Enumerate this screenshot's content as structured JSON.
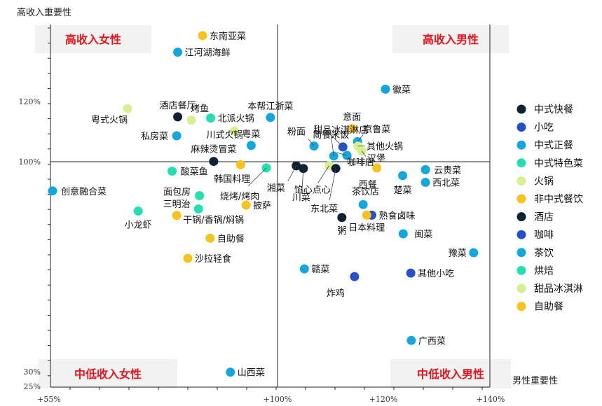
{
  "chart_data": {
    "type": "scatter",
    "title": "",
    "xlabel": "男性重要性",
    "ylabel": "高收入重要性",
    "xlim": [
      55,
      145
    ],
    "ylim": [
      25,
      145
    ],
    "grid": false,
    "legend_position": "right",
    "x_ticks": [
      {
        "value": 55,
        "label": "+55%"
      },
      {
        "value": 100,
        "label": "+100%"
      },
      {
        "value": 120,
        "label": "+120%"
      },
      {
        "value": 140,
        "label": "+140%"
      }
    ],
    "y_ticks": [
      {
        "value": 120,
        "label": "120%"
      },
      {
        "value": 100,
        "label": "100%"
      },
      {
        "value": 30,
        "label": "30%"
      },
      {
        "value": 25,
        "label": "25%"
      }
    ],
    "quadrants": {
      "top_left": "高收入女性",
      "top_right": "高收入男性",
      "bottom_left": "中低收入女性",
      "bottom_right": "中低收入男性"
    },
    "categories": [
      {
        "name": "中式快餐",
        "color": "#0d2233"
      },
      {
        "name": "小吃",
        "color": "#2450c9"
      },
      {
        "name": "中式正餐",
        "color": "#12a7df"
      },
      {
        "name": "中式特色菜",
        "color": "#23e0b3"
      },
      {
        "name": "火锅",
        "color": "#d6ef8f"
      },
      {
        "name": "非中式餐饮",
        "color": "#f6c41c"
      },
      {
        "name": "酒店",
        "color": "#0d2233"
      },
      {
        "name": "咖啡",
        "color": "#2450c9"
      },
      {
        "name": "茶饮",
        "color": "#12a7df"
      },
      {
        "name": "烘焙",
        "color": "#23e0b3"
      },
      {
        "name": "甜品冰淇淋",
        "color": "#d6ef8f"
      },
      {
        "name": "自助餐",
        "color": "#f6c41c"
      }
    ],
    "points": [
      {
        "label": "东南亚菜",
        "x": 85.2,
        "y": 141.9,
        "category": "非中式餐饮"
      },
      {
        "label": "江河湖海鲜",
        "x": 80.3,
        "y": 136.4,
        "category": "中式正餐"
      },
      {
        "label": "徽菜",
        "x": 121.3,
        "y": 124.1,
        "category": "中式正餐"
      },
      {
        "label": "粤式火锅",
        "x": 70.4,
        "y": 117.6,
        "category": "火锅"
      },
      {
        "label": "酒店餐厅",
        "x": 80.3,
        "y": 114.9,
        "category": "酒店"
      },
      {
        "label": "烤鱼",
        "x": 83.0,
        "y": 113.8,
        "category": "火锅"
      },
      {
        "label": "北派火锅",
        "x": 86.8,
        "y": 114.5,
        "category": "中式特色菜"
      },
      {
        "label": "本帮江浙菜",
        "x": 98.6,
        "y": 114.7,
        "category": "中式正餐"
      },
      {
        "label": "意面",
        "x": 114.7,
        "y": 111.0,
        "category": "非中式餐饮"
      },
      {
        "label": "川式火锅",
        "x": 91.5,
        "y": 110.2,
        "category": "火锅"
      },
      {
        "label": "私房菜",
        "x": 80.1,
        "y": 108.6,
        "category": "中式正餐"
      },
      {
        "label": "粤菜",
        "x": 94.8,
        "y": 105.4,
        "category": "中式正餐"
      },
      {
        "label": "京鲁菜",
        "x": 115.8,
        "y": 106.7,
        "category": "中式正餐"
      },
      {
        "label": "其他火锅",
        "x": 115.9,
        "y": 105.2,
        "category": "火锅"
      },
      {
        "label": "汉堡",
        "x": 116.6,
        "y": 103.6,
        "category": "甜品冰淇淋"
      },
      {
        "label": "甜品冰淇淋店",
        "x": 112.9,
        "y": 104.9,
        "category": "小吃"
      },
      {
        "label": "麻辣烫冒菜",
        "x": 87.4,
        "y": 100.1,
        "category": "中式快餐"
      },
      {
        "label": "简餐米饭",
        "x": 111.1,
        "y": 101.9,
        "category": "中式正餐"
      },
      {
        "label": "粉面",
        "x": 107.2,
        "y": 105.2,
        "category": "中式正餐"
      },
      {
        "label": "咖啡店",
        "x": 113.7,
        "y": 102.1,
        "category": "茶饮"
      },
      {
        "label": "湘菜",
        "x": 103.7,
        "y": 98.6,
        "category": "中式快餐"
      },
      {
        "label": "川菜",
        "x": 105.1,
        "y": 97.7,
        "category": "中式快餐"
      },
      {
        "label": "馅心点心",
        "x": 110.2,
        "y": 98.7,
        "category": "甜品冰淇淋"
      },
      {
        "label": "东北菜",
        "x": 111.5,
        "y": 97.7,
        "category": "中式快餐"
      },
      {
        "label": "西餐",
        "x": 119.6,
        "y": 97.9,
        "category": "非中式餐饮"
      },
      {
        "label": "韩国料理",
        "x": 92.7,
        "y": 99.0,
        "category": "非中式餐饮"
      },
      {
        "label": "烧烤/烤肉",
        "x": 97.8,
        "y": 97.9,
        "category": "中式特色菜"
      },
      {
        "label": "酸菜鱼",
        "x": 79.2,
        "y": 96.8,
        "category": "中式特色菜"
      },
      {
        "label": "云贵菜",
        "x": 129.2,
        "y": 97.3,
        "category": "中式正餐"
      },
      {
        "label": "楚菜",
        "x": 124.7,
        "y": 95.3,
        "category": "中式正餐"
      },
      {
        "label": "西北菜",
        "x": 129.2,
        "y": 93.0,
        "category": "中式正餐"
      },
      {
        "label": "创意融合菜",
        "x": 55.6,
        "y": 90.1,
        "category": "中式正餐"
      },
      {
        "label": "面包房",
        "x": 84.6,
        "y": 88.5,
        "category": "中式特色菜"
      },
      {
        "label": "茶饮店",
        "x": 116.9,
        "y": 85.5,
        "category": "茶饮"
      },
      {
        "label": "披萨",
        "x": 93.8,
        "y": 85.3,
        "category": "非中式餐饮"
      },
      {
        "label": "三明治",
        "x": 80.1,
        "y": 81.8,
        "category": "非中式餐饮"
      },
      {
        "label": "小龙虾",
        "x": 72.5,
        "y": 83.3,
        "category": "中式特色菜"
      },
      {
        "label": "熟食卤味",
        "x": 118.6,
        "y": 81.9,
        "category": "小吃"
      },
      {
        "label": "日本料理",
        "x": 117.6,
        "y": 81.9,
        "category": "非中式餐饮"
      },
      {
        "label": "干锅/香锅/焖锅",
        "x": 84.4,
        "y": 84.0,
        "category": "中式特色菜"
      },
      {
        "label": "粥",
        "x": 112.7,
        "y": 81.1,
        "category": "中式快餐"
      },
      {
        "label": "闽菜",
        "x": 124.8,
        "y": 75.6,
        "category": "中式正餐"
      },
      {
        "label": "自助餐",
        "x": 86.7,
        "y": 74.1,
        "category": "非中式餐饮"
      },
      {
        "label": "豫菜",
        "x": 138.7,
        "y": 69.2,
        "category": "中式正餐"
      },
      {
        "label": "沙拉轻食",
        "x": 82.3,
        "y": 67.3,
        "category": "非中式餐饮"
      },
      {
        "label": "赣菜",
        "x": 105.3,
        "y": 63.7,
        "category": "中式正餐"
      },
      {
        "label": "其他小吃",
        "x": 126.3,
        "y": 62.3,
        "category": "小吃"
      },
      {
        "label": "炸鸡",
        "x": 115.2,
        "y": 61.1,
        "category": "小吃"
      },
      {
        "label": "广西菜",
        "x": 126.4,
        "y": 39.5,
        "category": "中式正餐"
      },
      {
        "label": "山西菜",
        "x": 90.7,
        "y": 29.1,
        "category": "中式正餐"
      }
    ]
  }
}
